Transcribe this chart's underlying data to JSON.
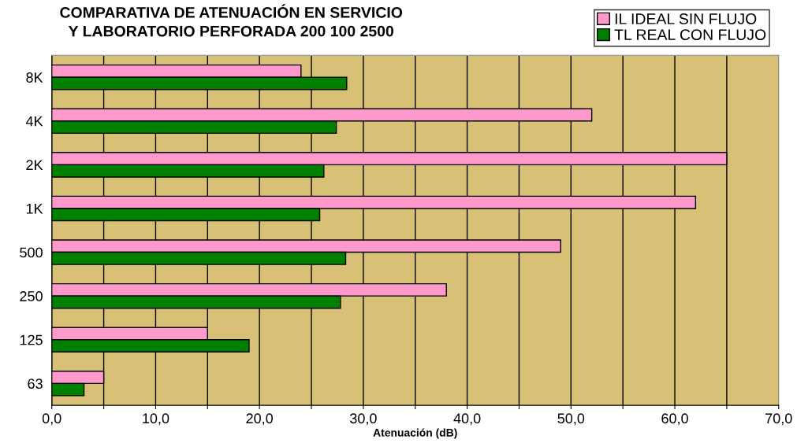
{
  "chart_data": {
    "type": "bar",
    "orientation": "horizontal",
    "title": "COMPARATIVA DE ATENUACIÓN EN SERVICIO\nY LABORATORIO PERFORADA 200 100 2500",
    "xlabel": "Atenuación (dB)",
    "categories": [
      "8K",
      "4K",
      "2K",
      "1K",
      "500",
      "250",
      "125",
      "63"
    ],
    "series": [
      {
        "name": "IL IDEAL SIN FLUJO",
        "color": "#ff99cc",
        "values": [
          24,
          52,
          65,
          62,
          49,
          38,
          15,
          5
        ]
      },
      {
        "name": "TL REAL CON FLUJO",
        "color": "#008000",
        "values": [
          28.4,
          27.4,
          26.2,
          25.8,
          28.3,
          27.8,
          19,
          3.1
        ]
      }
    ],
    "xlim": [
      0,
      70
    ],
    "xticks": [
      {
        "value": 0,
        "label": "0,0"
      },
      {
        "value": 5,
        "label": null
      },
      {
        "value": 10,
        "label": "10,0"
      },
      {
        "value": 15,
        "label": null
      },
      {
        "value": 20,
        "label": "20,0"
      },
      {
        "value": 25,
        "label": null
      },
      {
        "value": 30,
        "label": "30,0"
      },
      {
        "value": 35,
        "label": null
      },
      {
        "value": 40,
        "label": "40,0"
      },
      {
        "value": 45,
        "label": null
      },
      {
        "value": 50,
        "label": "50,0"
      },
      {
        "value": 55,
        "label": null
      },
      {
        "value": 60,
        "label": "60,0"
      },
      {
        "value": 65,
        "label": null
      },
      {
        "value": 70,
        "label": "70,0"
      }
    ],
    "grid": "x",
    "legend": "top right"
  }
}
